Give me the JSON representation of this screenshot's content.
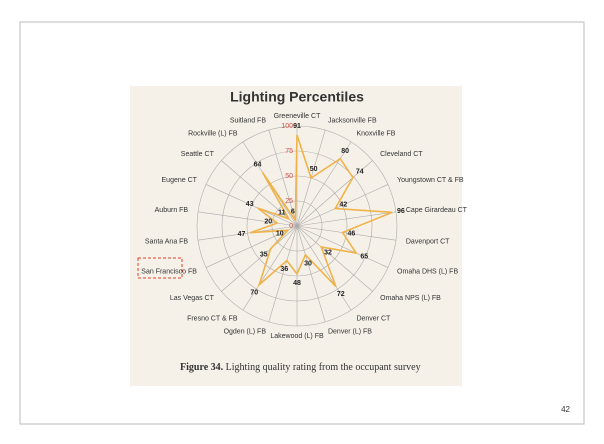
{
  "chart_data": {
    "type": "radar",
    "title": "Lighting Percentiles",
    "categories": [
      "Greeneville CT",
      "Jacksonville FB",
      "Knoxville FB",
      "Cleveland CT",
      "Youngstown CT & FB",
      "Cape Girardeau CT",
      "Davenport CT",
      "Omaha DHS (L) FB",
      "Omaha NPS (L) FB",
      "Denver CT",
      "Denver (L) FB",
      "Lakewood (L) FB",
      "Ogden (L) FB",
      "Fresno CT & FB",
      "Las Vegas CT",
      "San Francisco FB",
      "Santa Ana FB",
      "Auburn FB",
      "Eugene CT",
      "Seattle CT",
      "Rockville (L) FB",
      "Suitland FB"
    ],
    "values": [
      91,
      50,
      80,
      74,
      42,
      96,
      46,
      65,
      32,
      72,
      30,
      48,
      36,
      70,
      35,
      10,
      47,
      20,
      43,
      11,
      64,
      6
    ],
    "color": "#f0b34a",
    "ylim": [
      0,
      100
    ],
    "yticks": [
      0,
      25,
      50,
      75,
      100
    ],
    "caption_label": "Figure 34.",
    "caption": "Lighting quality rating from the occupant survey"
  },
  "page_number": "42"
}
